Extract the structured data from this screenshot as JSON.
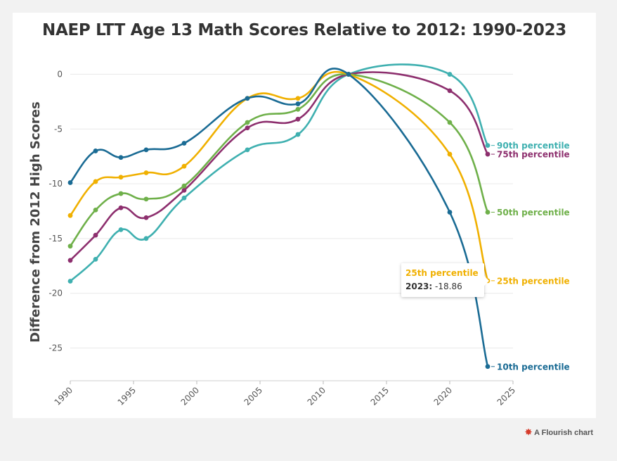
{
  "colors": {
    "10th": "#1a6b94",
    "25th": "#f0b000",
    "50th": "#6fb04a",
    "75th": "#8d2f6e",
    "90th": "#3fb0b0",
    "axis_text": "#555555",
    "grid": "#e9e9e9"
  },
  "tooltip": {
    "series": "25th percentile",
    "label": "2023:",
    "value": "-18.86"
  },
  "credit": {
    "icon": "flourish-star-icon",
    "text": "A Flourish chart"
  },
  "chart_data": {
    "type": "line",
    "title": "NAEP LTT Age 13 Math Scores Relative to 2012: 1990-2023",
    "xlabel": "",
    "ylabel": "Difference from 2012 High Scores",
    "xlim": [
      1990,
      2025
    ],
    "ylim": [
      -28,
      1
    ],
    "x_ticks": [
      1990,
      1995,
      2000,
      2005,
      2010,
      2015,
      2020,
      2025
    ],
    "y_ticks": [
      0,
      -5,
      -10,
      -15,
      -20,
      -25
    ],
    "grid": true,
    "legend": "end-of-line labels",
    "x": [
      1990,
      1992,
      1994,
      1996,
      1999,
      2004,
      2008,
      2012,
      2020,
      2023
    ],
    "series": [
      {
        "name": "90th percentile",
        "key": "90th",
        "values": [
          -18.9,
          -16.9,
          -14.2,
          -15.0,
          -11.3,
          -6.9,
          -5.5,
          0,
          0,
          -6.5
        ]
      },
      {
        "name": "75th percentile",
        "key": "75th",
        "values": [
          -17.0,
          -14.7,
          -12.2,
          -13.1,
          -10.6,
          -4.9,
          -4.1,
          0,
          -1.5,
          -7.3
        ]
      },
      {
        "name": "50th percentile",
        "key": "50th",
        "values": [
          -15.7,
          -12.4,
          -10.9,
          -11.4,
          -10.2,
          -4.4,
          -3.2,
          0,
          -4.4,
          -12.6
        ]
      },
      {
        "name": "25th percentile",
        "key": "25th",
        "values": [
          -12.9,
          -9.8,
          -9.4,
          -9.0,
          -8.4,
          -2.2,
          -2.2,
          0,
          -7.3,
          -18.86
        ]
      },
      {
        "name": "10th percentile",
        "key": "10th",
        "values": [
          -9.9,
          -7.0,
          -7.6,
          -6.9,
          -6.3,
          -2.2,
          -2.7,
          0,
          -12.6,
          -26.7
        ]
      }
    ]
  }
}
